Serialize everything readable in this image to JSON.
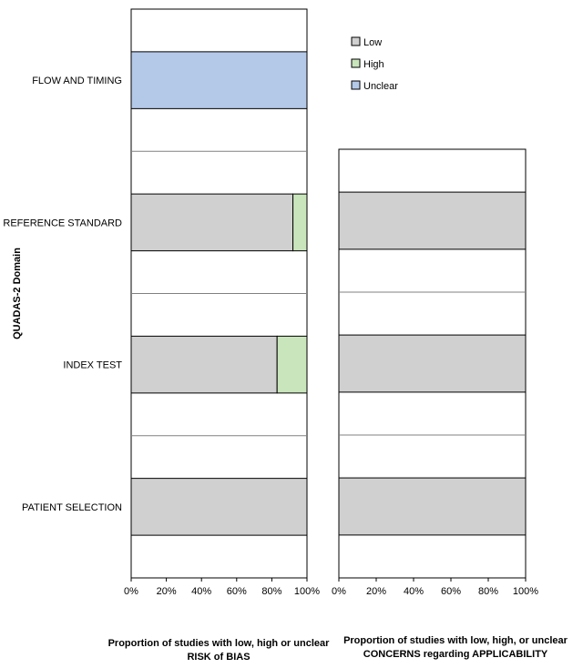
{
  "chart_data": [
    {
      "type": "bar",
      "orientation": "horizontal",
      "stacked": true,
      "ylabel": "QUADAS-2 Domain",
      "xlabel_lines": [
        "Proportion of studies with low, high or unclear",
        "RISK of BIAS"
      ],
      "categories": [
        "PATIENT SELECTION",
        "INDEX TEST",
        "REFERENCE STANDARD",
        "FLOW AND TIMING"
      ],
      "series": [
        {
          "name": "Low",
          "color": "#d0d0d0",
          "values": [
            100,
            83,
            92,
            0
          ]
        },
        {
          "name": "High",
          "color": "#c9e5bb",
          "values": [
            0,
            17,
            8,
            0
          ]
        },
        {
          "name": "Unclear",
          "color": "#b4c8e8",
          "values": [
            0,
            0,
            0,
            100
          ]
        }
      ],
      "xlim": [
        0,
        100
      ],
      "xticks": [
        "0%",
        "20%",
        "40%",
        "60%",
        "80%",
        "100%"
      ],
      "legend": "top-right"
    },
    {
      "type": "bar",
      "orientation": "horizontal",
      "stacked": true,
      "xlabel_lines": [
        "Proportion of studies with low, high, or unclear",
        "CONCERNS regarding APPLICABILITY"
      ],
      "categories": [
        "PATIENT SELECTION",
        "INDEX TEST",
        "REFERENCE STANDARD"
      ],
      "series": [
        {
          "name": "Low",
          "color": "#d0d0d0",
          "values": [
            100,
            100,
            100
          ]
        },
        {
          "name": "High",
          "color": "#c9e5bb",
          "values": [
            0,
            0,
            0
          ]
        },
        {
          "name": "Unclear",
          "color": "#b4c8e8",
          "values": [
            0,
            0,
            0
          ]
        }
      ],
      "xlim": [
        0,
        100
      ],
      "xticks": [
        "0%",
        "20%",
        "40%",
        "60%",
        "80%",
        "100%"
      ]
    }
  ]
}
